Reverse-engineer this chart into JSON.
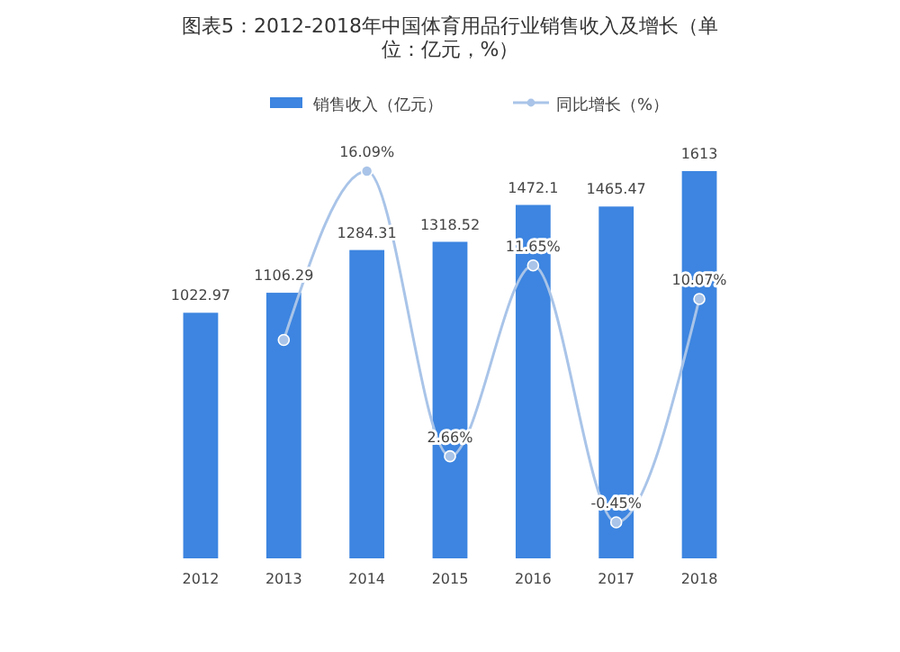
{
  "chart_data": {
    "type": "bar",
    "title": "图表5：2012-2018年中国体育用品行业销售收入及增长（单位：亿元，%）",
    "categories": [
      "2012",
      "2013",
      "2014",
      "2015",
      "2016",
      "2017",
      "2018"
    ],
    "legend": "top",
    "tick_labels": "x",
    "marker": "circle",
    "series": [
      {
        "name": "销售收入（亿元）",
        "color": "#3d85e0",
        "values": [
          1022.97,
          1106.29,
          1284.31,
          1318.52,
          1472.1,
          1465.47,
          1613
        ],
        "value_labels": [
          "1022.97",
          "1106.29",
          "1284.31",
          "1318.52",
          "1472.1",
          "1465.47",
          "1613"
        ]
      },
      {
        "name": "同比增长（%）",
        "type": "line",
        "axis": "y2",
        "color": "#a9c4e8",
        "values": [
          null,
          8.14,
          16.09,
          2.66,
          11.65,
          -0.45,
          10.07
        ],
        "value_labels": [
          null,
          null,
          "16.09%",
          "2.66%",
          "11.65%",
          "-0.45%",
          "10.07%"
        ]
      }
    ]
  }
}
